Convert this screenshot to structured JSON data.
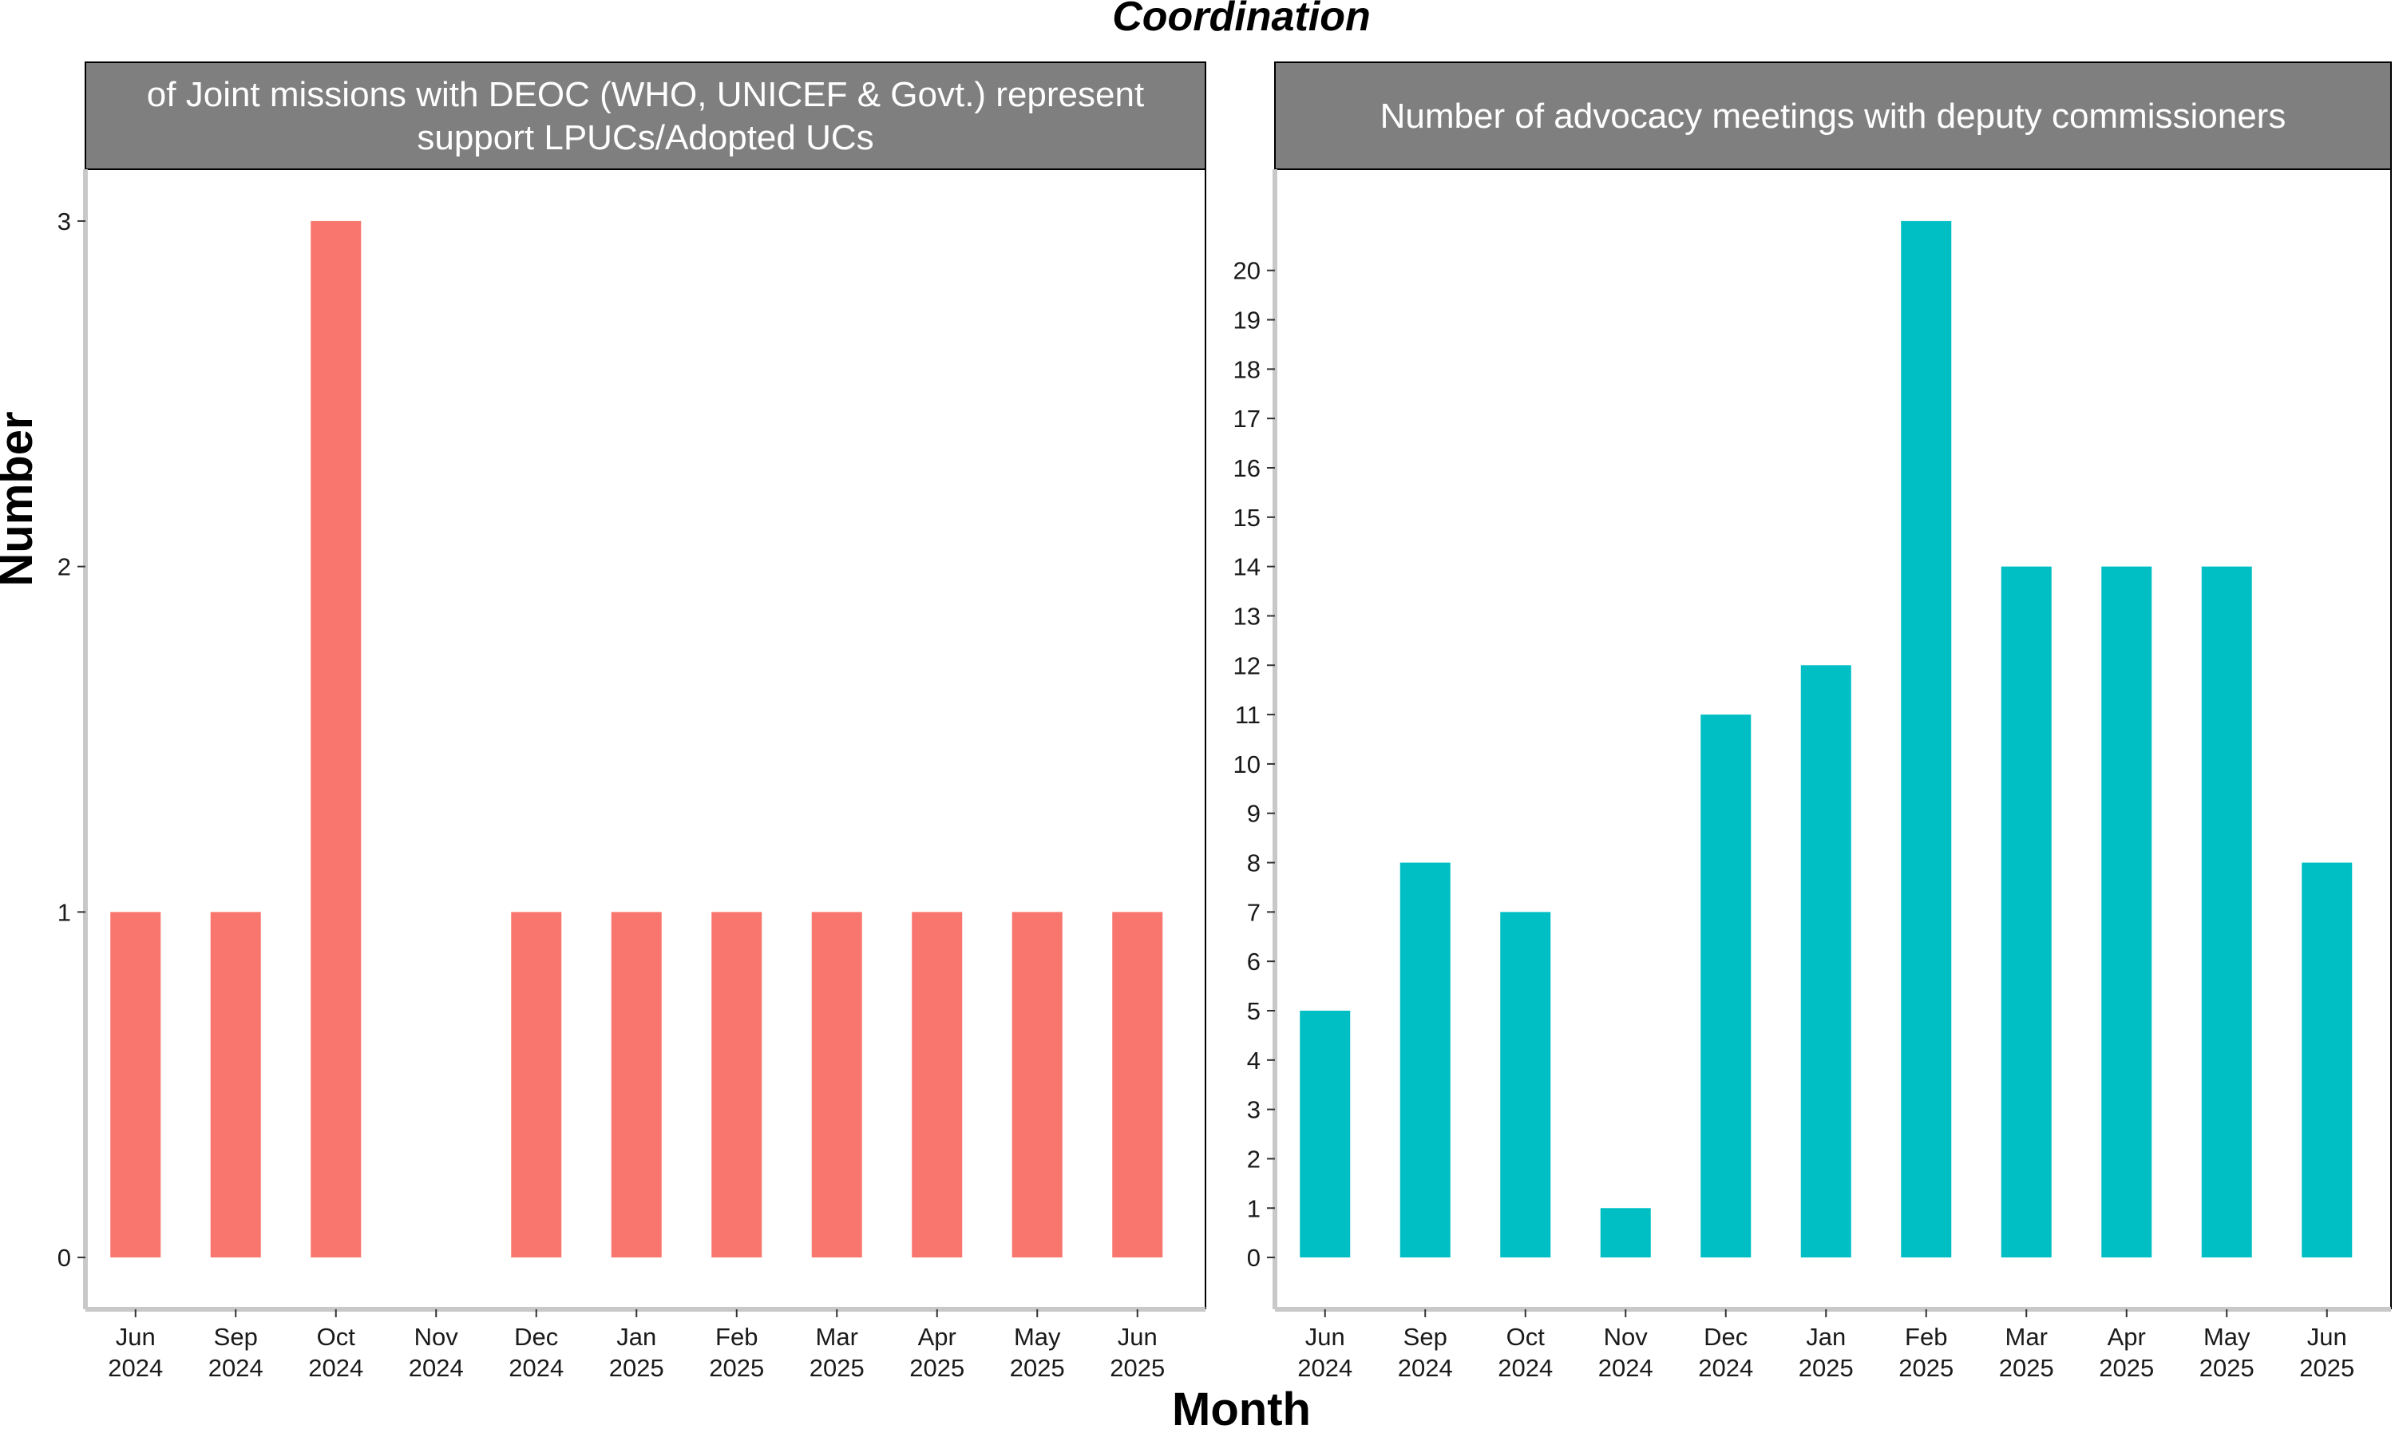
{
  "title": "Coordination",
  "xlabel": "Month",
  "ylabel": "Number",
  "categories": [
    "Jun 2024",
    "Sep 2024",
    "Oct 2024",
    "Nov 2024",
    "Dec 2024",
    "Jan 2025",
    "Feb 2025",
    "Mar 2025",
    "Apr 2025",
    "May 2025",
    "Jun 2025"
  ],
  "tick_lines": [
    [
      "Jun",
      "2024"
    ],
    [
      "Sep",
      "2024"
    ],
    [
      "Oct",
      "2024"
    ],
    [
      "Nov",
      "2024"
    ],
    [
      "Dec",
      "2024"
    ],
    [
      "Jan",
      "2025"
    ],
    [
      "Feb",
      "2025"
    ],
    [
      "Mar",
      "2025"
    ],
    [
      "Apr",
      "2025"
    ],
    [
      "May",
      "2025"
    ],
    [
      "Jun",
      "2025"
    ]
  ],
  "chart_data": [
    {
      "type": "bar",
      "strip_lines": [
        "of Joint missions with DEOC (WHO, UNICEF & Govt.) represent",
        "support LPUCs/Adopted UCs"
      ],
      "categories": [
        "Jun 2024",
        "Sep 2024",
        "Oct 2024",
        "Nov 2024",
        "Dec 2024",
        "Jan 2025",
        "Feb 2025",
        "Mar 2025",
        "Apr 2025",
        "May 2025",
        "Jun 2025"
      ],
      "values": [
        1,
        1,
        3,
        null,
        1,
        1,
        1,
        1,
        1,
        1,
        1
      ],
      "ylim": [
        -0.15,
        3.15
      ],
      "yticks": [
        0,
        1,
        2,
        3
      ],
      "color": "#F8766D"
    },
    {
      "type": "bar",
      "strip_lines": [
        "Number of advocacy meetings with deputy commissioners"
      ],
      "categories": [
        "Jun 2024",
        "Sep 2024",
        "Oct 2024",
        "Nov 2024",
        "Dec 2024",
        "Jan 2025",
        "Feb 2025",
        "Mar 2025",
        "Apr 2025",
        "May 2025",
        "Jun 2025"
      ],
      "values": [
        5,
        8,
        7,
        1,
        11,
        12,
        21,
        14,
        14,
        14,
        8
      ],
      "ylim": [
        -1.05,
        22.05
      ],
      "yticks": [
        0,
        1,
        2,
        3,
        4,
        5,
        6,
        7,
        8,
        9,
        10,
        11,
        12,
        13,
        14,
        15,
        16,
        17,
        18,
        19,
        20
      ],
      "color": "#00BFC4"
    }
  ],
  "colors": {
    "strip_fill": "#7f7f7f",
    "axis_line": "#c8c8c8",
    "panel_border": "#000000"
  }
}
